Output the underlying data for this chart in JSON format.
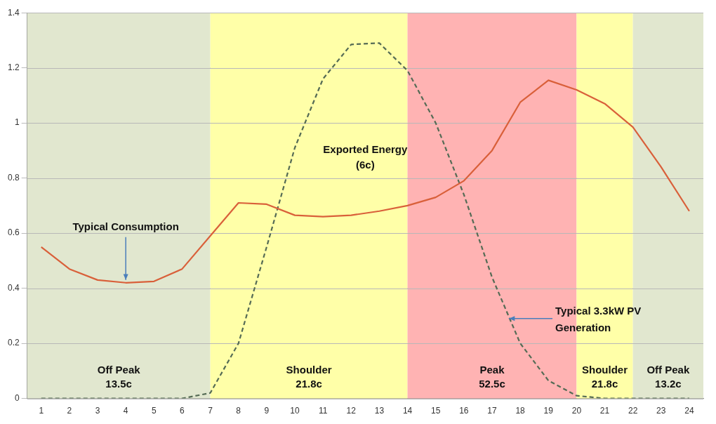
{
  "chart_data": {
    "type": "line",
    "x": [
      1,
      2,
      3,
      4,
      5,
      6,
      7,
      8,
      9,
      10,
      11,
      12,
      13,
      14,
      15,
      16,
      17,
      18,
      19,
      20,
      21,
      22,
      23,
      24
    ],
    "series": [
      {
        "type": "line",
        "color": "#d9603a",
        "line_style": "solid",
        "values": [
          0.55,
          0.47,
          0.43,
          0.42,
          0.425,
          0.47,
          0.59,
          0.71,
          0.705,
          0.665,
          0.66,
          0.665,
          0.68,
          0.7,
          0.73,
          0.79,
          0.9,
          1.075,
          1.155,
          1.12,
          1.07,
          0.985,
          0.84,
          0.68
        ]
      },
      {
        "type": "line",
        "color": "#556b55",
        "line_style": "dashed",
        "values": [
          0,
          0,
          0,
          0,
          0,
          0,
          0.02,
          0.2,
          0.55,
          0.91,
          1.16,
          1.285,
          1.29,
          1.19,
          1.0,
          0.74,
          0.44,
          0.2,
          0.065,
          0.01,
          0,
          0,
          0,
          0
        ]
      }
    ],
    "xlim": [
      0.5,
      24.5
    ],
    "xticks": [
      1,
      2,
      3,
      4,
      5,
      6,
      7,
      8,
      9,
      10,
      11,
      12,
      13,
      14,
      15,
      16,
      17,
      18,
      19,
      20,
      21,
      22,
      23,
      24
    ],
    "ylim": [
      0,
      1.4
    ],
    "yticks": [
      0,
      0.2,
      0.4,
      0.6,
      0.8,
      1,
      1.2,
      1.4
    ],
    "grid": "y",
    "legend": false,
    "marker": "none",
    "bands": [
      {
        "axis": "x",
        "from": 0.5,
        "to": 7,
        "label": "Off Peak\n13.5c",
        "color": "#e1e7cf"
      },
      {
        "axis": "x",
        "from": 7,
        "to": 14,
        "label": "Shoulder\n21.8c",
        "color": "#ffffa8"
      },
      {
        "axis": "x",
        "from": 14,
        "to": 20,
        "label": "Peak\n52.5c",
        "color": "#ffb3b3"
      },
      {
        "axis": "x",
        "from": 20,
        "to": 22,
        "label": "Shoulder\n21.8c",
        "color": "#ffffa8"
      },
      {
        "axis": "x",
        "from": 22,
        "to": 24.5,
        "label": "Off Peak\n13.2c",
        "color": "#e1e7cf"
      }
    ],
    "annotations": [
      "Exported Energy\n(6c)",
      {
        "text": "Typical Consumption",
        "x": 4,
        "y": 0.42
      },
      {
        "text": "Typical 3.3kW PV Generation",
        "x": 17.5,
        "y": 0.29
      }
    ]
  }
}
